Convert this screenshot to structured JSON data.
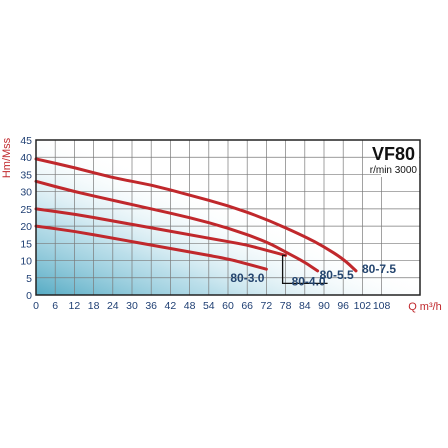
{
  "chart_data": {
    "type": "line",
    "title": "VF80",
    "subtitle": "r/min 3000",
    "xlabel": "Q m³/h",
    "ylabel": "Hm/Mss",
    "xlim": [
      0,
      120
    ],
    "ylim": [
      0,
      45
    ],
    "x_ticks": [
      "0",
      "6",
      "12",
      "18",
      "24",
      "30",
      "36",
      "42",
      "48",
      "54",
      "60",
      "66",
      "72",
      "78",
      "84",
      "90",
      "96",
      "102",
      "108"
    ],
    "y_ticks": [
      "0",
      "5",
      "10",
      "15",
      "20",
      "25",
      "30",
      "35",
      "40",
      "45"
    ],
    "grid": true,
    "legend": "labels at curve ends",
    "series": [
      {
        "name": "80-3.0",
        "x": [
          0,
          12,
          24,
          36,
          48,
          60,
          66,
          72
        ],
        "y": [
          20,
          18.5,
          16.5,
          14.5,
          12.5,
          10.5,
          9,
          7.5
        ]
      },
      {
        "name": "80-4.0",
        "x": [
          0,
          12,
          24,
          36,
          48,
          60,
          66,
          72,
          78
        ],
        "y": [
          25,
          23.5,
          21.5,
          19.5,
          17.5,
          15.5,
          14.5,
          13,
          11.5
        ]
      },
      {
        "name": "80-5.5",
        "x": [
          0,
          12,
          24,
          36,
          48,
          60,
          72,
          78,
          84,
          88
        ],
        "y": [
          33,
          30,
          27.5,
          25,
          22.5,
          19.5,
          15.5,
          12.5,
          9.5,
          7
        ]
      },
      {
        "name": "80-7.5",
        "x": [
          0,
          12,
          24,
          36,
          48,
          60,
          72,
          84,
          90,
          96,
          100
        ],
        "y": [
          39.5,
          37,
          34,
          32,
          29,
          26,
          22,
          17,
          14,
          10.5,
          7
        ]
      }
    ],
    "colors": {
      "curve": "#c0282c",
      "label": "#24456f",
      "grid": "#7a7a7a",
      "frame": "#222222"
    }
  }
}
